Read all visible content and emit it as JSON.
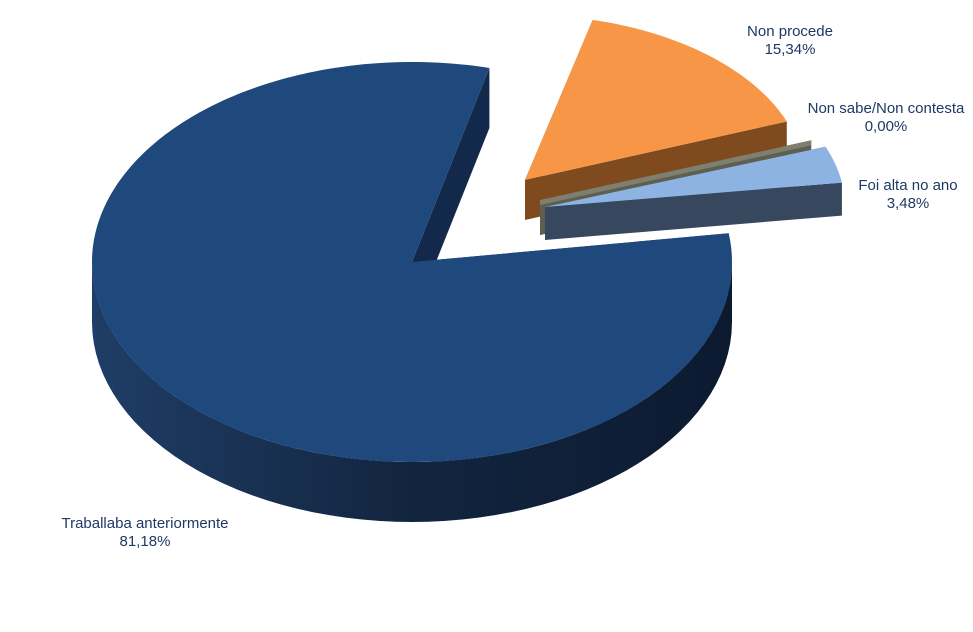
{
  "chart_data": {
    "type": "pie",
    "style": "3d-exploded",
    "start_angle_deg": 14,
    "direction": "clockwise",
    "slices": [
      {
        "label": "Non procede",
        "value": 15.34,
        "value_label": "15,34%",
        "color": "#f79646",
        "side_color": "#7f4a1e",
        "exploded": true
      },
      {
        "label": "Non sabe/Non contesta",
        "value": 0.0,
        "value_label": "0,00%",
        "color": "#7f7f6f",
        "side_color": "#5f5f50",
        "exploded": true
      },
      {
        "label": "Foi alta no ano",
        "value": 3.48,
        "value_label": "3,48%",
        "color": "#8db3e2",
        "side_color": "#36475e",
        "exploded": true
      },
      {
        "label": "Traballaba anteriormente",
        "value": 81.18,
        "value_label": "81,18%",
        "color": "#1f497d",
        "side_color": "#13294b",
        "exploded": false
      }
    ]
  }
}
